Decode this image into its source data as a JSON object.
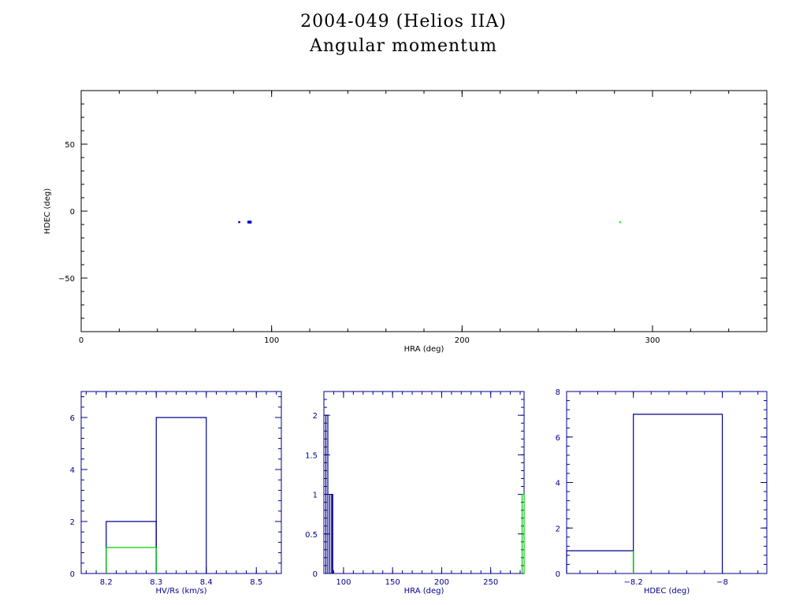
{
  "header": {
    "title": "2004-049 (Helios IIA)",
    "subtitle": "Angular momentum"
  },
  "colors": {
    "axis": "#000000",
    "histogram_axis": "#00008b",
    "primary": "#00008b",
    "secondary": "#00cc00",
    "point_blue": "#0000cc",
    "point_green": "#33ee33"
  },
  "chart_data": [
    {
      "type": "scatter",
      "xlabel": "HRA (deg)",
      "ylabel": "HDEC (deg)",
      "xlim": [
        0,
        360
      ],
      "ylim": [
        -90,
        90
      ],
      "xticks": [
        0,
        100,
        200,
        300
      ],
      "yticks": [
        -50,
        0,
        50
      ],
      "series": [
        {
          "color": "blue",
          "points": [
            [
              83,
              -8.2
            ],
            [
              88,
              -8.2
            ],
            [
              88.8,
              -8.2
            ]
          ]
        },
        {
          "color": "green",
          "points": [
            [
              283,
              -8.2
            ]
          ]
        }
      ]
    },
    {
      "type": "histogram",
      "xlabel": "HV/Rs (km/s)",
      "ylabel": "",
      "xlim": [
        8.15,
        8.55
      ],
      "ylim": [
        0,
        7
      ],
      "xticks": [
        8.2,
        8.3,
        8.4,
        8.5
      ],
      "yticks": [
        0,
        2,
        4,
        6
      ],
      "series": [
        {
          "color": "blue",
          "bins": [
            [
              8.2,
              8.3,
              2
            ],
            [
              8.3,
              8.4,
              6
            ]
          ]
        },
        {
          "color": "green",
          "bins": [
            [
              8.2,
              8.3,
              1
            ]
          ]
        }
      ]
    },
    {
      "type": "histogram",
      "xlabel": "HRA (deg)",
      "ylabel": "",
      "xlim": [
        80,
        284
      ],
      "ylim": [
        0,
        2.3
      ],
      "xticks": [
        100,
        150,
        200,
        250
      ],
      "ytick_labels": [
        "0",
        "0.5",
        "1",
        "1.5",
        "2"
      ],
      "yticks": [
        0,
        0.5,
        1,
        1.5,
        2
      ],
      "series": [
        {
          "color": "blue",
          "bins": [
            [
              82,
              84,
              2
            ],
            [
              86,
              88,
              1
            ],
            [
              88,
              89,
              1
            ]
          ]
        },
        {
          "color": "green",
          "bins": [
            [
              282,
              284,
              1
            ]
          ]
        }
      ]
    },
    {
      "type": "histogram",
      "xlabel": "HDEC (deg)",
      "ylabel": "",
      "xlim": [
        -8.35,
        -7.9
      ],
      "ylim": [
        0,
        8
      ],
      "xticks": [
        -8.2,
        -8
      ],
      "xtick_labels": [
        "-8.2",
        "-8"
      ],
      "yticks": [
        0,
        2,
        4,
        6,
        8
      ],
      "series": [
        {
          "color": "blue",
          "bins": [
            [
              -8.4,
              -8.2,
              1
            ],
            [
              -8.2,
              -8.0,
              7
            ]
          ]
        },
        {
          "color": "green",
          "bins": [
            [
              -8.2,
              -8.2,
              1
            ]
          ]
        }
      ]
    }
  ]
}
